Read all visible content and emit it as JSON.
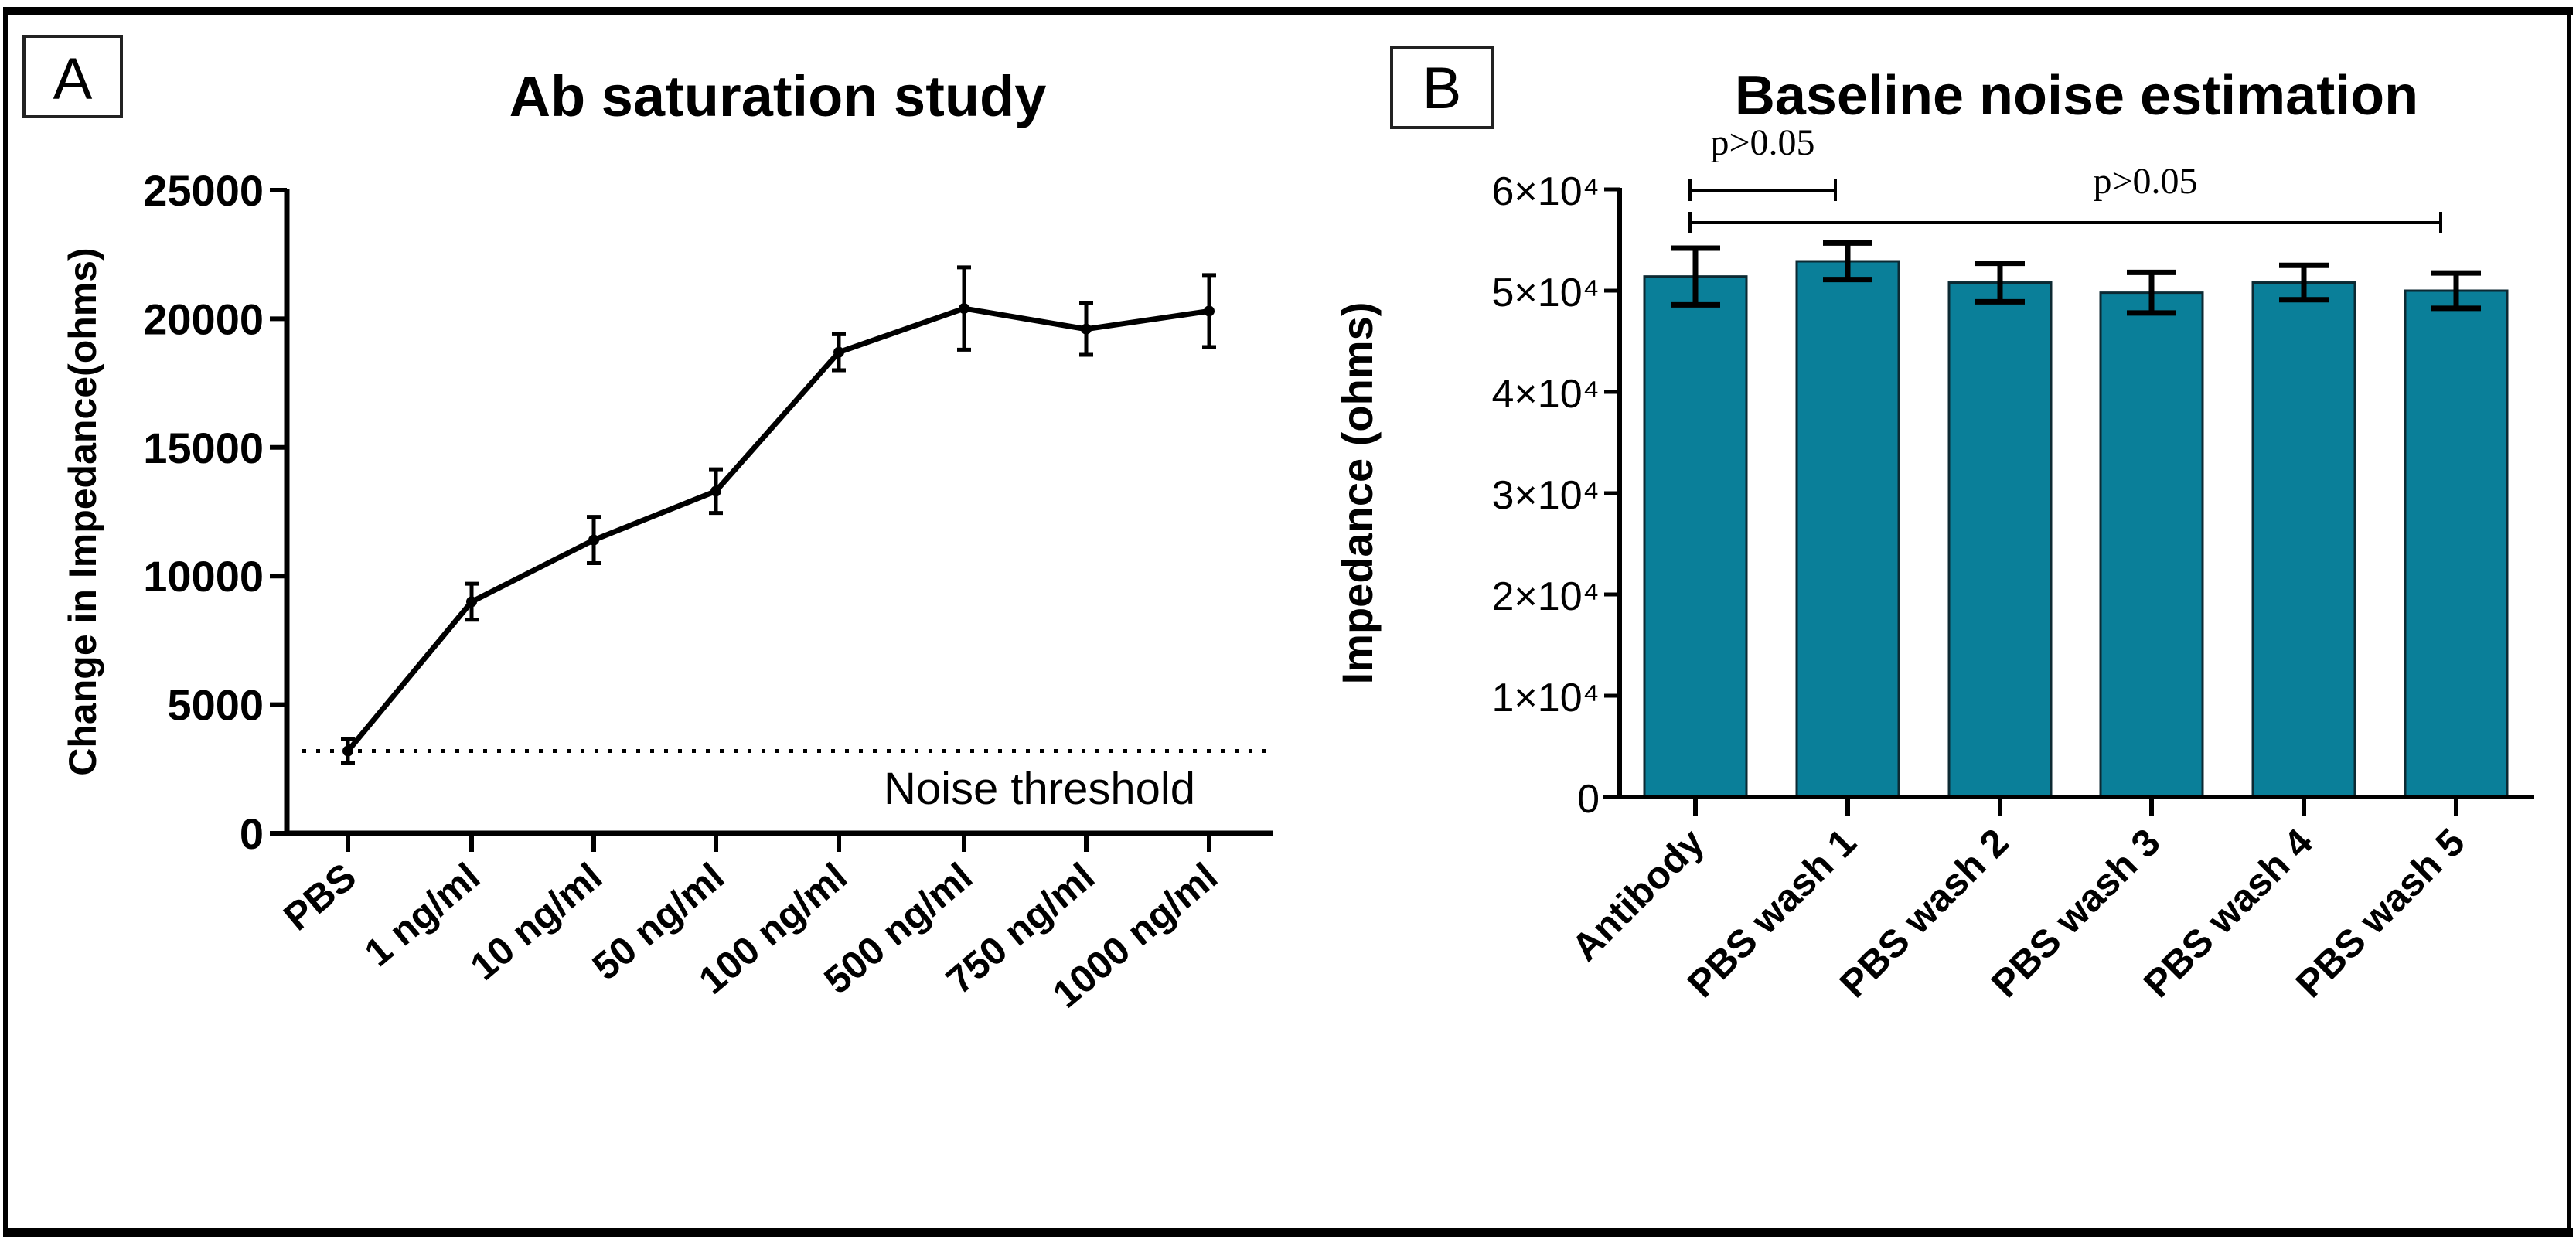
{
  "colors": {
    "bar_fill": "#0a7f99",
    "line": "#000000"
  },
  "chart_data": [
    {
      "panel_label": "A",
      "type": "line",
      "title": "Ab saturation study",
      "xlabel": "",
      "ylabel": "Change in Impedance(ohms)",
      "ylim": [
        0,
        25000
      ],
      "yticks": [
        "0",
        "5000",
        "10000",
        "15000",
        "20000",
        "25000"
      ],
      "ytick_values": [
        0,
        5000,
        10000,
        15000,
        20000,
        25000
      ],
      "categories": [
        "PBS",
        "1 ng/ml",
        "10 ng/ml",
        "50 ng/ml",
        "100 ng/ml",
        "500 ng/ml",
        "750 ng/ml",
        "1000 ng/ml"
      ],
      "values": [
        3200,
        9000,
        11400,
        13300,
        18700,
        20400,
        19600,
        20300
      ],
      "errors": [
        450,
        700,
        900,
        850,
        700,
        1600,
        1000,
        1400
      ],
      "threshold": {
        "value": 3200,
        "label": "Noise threshold"
      },
      "grid": false
    },
    {
      "panel_label": "B",
      "type": "bar",
      "title": "Baseline noise estimation",
      "xlabel": "",
      "ylabel": "Impedance (ohms)",
      "ylim": [
        0,
        60000
      ],
      "yticks": [
        "0",
        "1×10⁴",
        "2×10⁴",
        "3×10⁴",
        "4×10⁴",
        "5×10⁴",
        "6×10⁴"
      ],
      "ytick_values": [
        0,
        10000,
        20000,
        30000,
        40000,
        50000,
        60000
      ],
      "categories": [
        "Antibody",
        "PBS wash 1",
        "PBS wash 2",
        "PBS wash 3",
        "PBS wash 4",
        "PBS wash 5"
      ],
      "values": [
        51400,
        52900,
        50800,
        49800,
        50800,
        50000
      ],
      "errors": [
        2800,
        1800,
        1900,
        2000,
        1700,
        1750
      ],
      "significance": [
        {
          "from": 0,
          "to": 1,
          "label": "p>0.05"
        },
        {
          "from": 0,
          "to": 5,
          "label": "p>0.05"
        }
      ],
      "grid": false
    }
  ]
}
